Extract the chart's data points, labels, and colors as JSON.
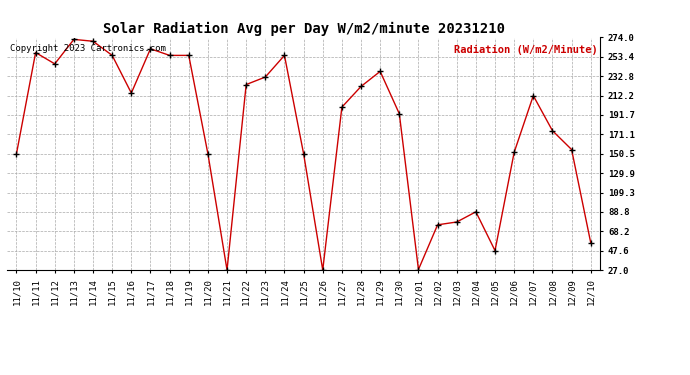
{
  "title": "Solar Radiation Avg per Day W/m2/minute 20231210",
  "copyright": "Copyright 2023 Cartronics.com",
  "legend_label": "Radiation (W/m2/Minute)",
  "labels": [
    "11/10",
    "11/11",
    "11/12",
    "11/13",
    "11/14",
    "11/15",
    "11/16",
    "11/17",
    "11/18",
    "11/19",
    "11/20",
    "11/21",
    "11/22",
    "11/23",
    "11/24",
    "11/25",
    "11/26",
    "11/27",
    "11/28",
    "11/29",
    "11/30",
    "12/01",
    "12/02",
    "12/03",
    "12/04",
    "12/05",
    "12/06",
    "12/07",
    "12/08",
    "12/09",
    "12/10"
  ],
  "values": [
    150.5,
    258.0,
    246.0,
    272.0,
    270.0,
    255.0,
    215.0,
    262.0,
    255.0,
    255.0,
    150.5,
    27.0,
    224.0,
    232.0,
    255.0,
    150.5,
    27.0,
    200.0,
    222.0,
    238.0,
    193.0,
    27.5,
    75.0,
    78.0,
    88.8,
    47.6,
    152.0,
    212.2,
    175.0,
    155.0,
    56.0
  ],
  "yticks": [
    27.0,
    47.6,
    68.2,
    88.8,
    109.3,
    129.9,
    150.5,
    171.1,
    191.7,
    212.2,
    232.8,
    253.4,
    274.0
  ],
  "ymin": 27.0,
  "ymax": 274.0,
  "line_color": "#cc0000",
  "marker_color": "#000000",
  "bg_color": "#ffffff",
  "grid_color": "#aaaaaa",
  "title_fontsize": 10,
  "copyright_fontsize": 6.5,
  "legend_color": "#cc0000",
  "tick_label_fontsize": 6.5,
  "legend_fontsize": 7.5
}
